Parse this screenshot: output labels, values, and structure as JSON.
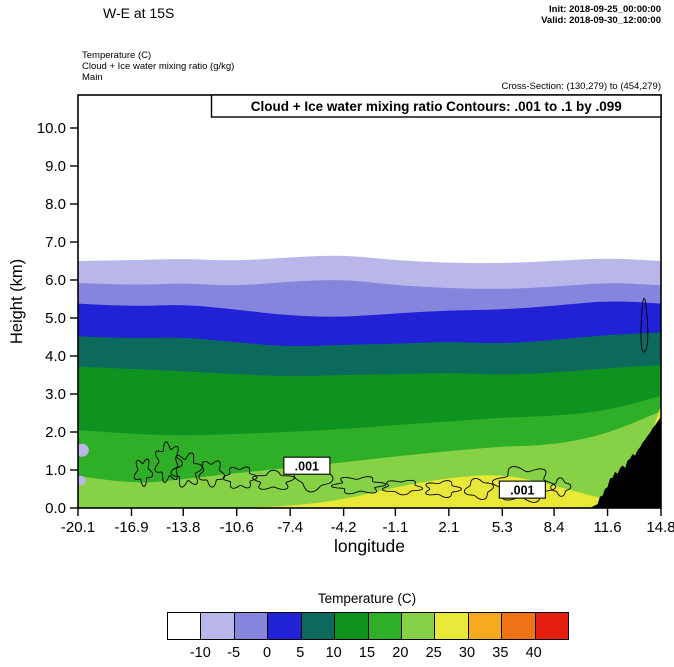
{
  "header": {
    "title": "W-E at 15S",
    "init": "Init: 2018-09-25_00:00:00",
    "valid": "Valid: 2018-09-30_12:00:00",
    "field_lines": [
      "Temperature  (C)",
      "Cloud + Ice water mixing ratio  (g/kg)",
      "Main"
    ],
    "cross_section": "Cross-Section: (130,279) to (454,279)"
  },
  "plot": {
    "contour_note": "Cloud + Ice water mixing ratio Contours: .001 to .1 by .099",
    "xlabel": "longitude",
    "ylabel": "Height (km)"
  },
  "colorbar": {
    "title": "Temperature  (C)",
    "tick_labels": [
      "-10",
      "-5",
      "0",
      "5",
      "10",
      "15",
      "20",
      "25",
      "30",
      "35",
      "40"
    ],
    "colors": [
      "#ffffff",
      "#b9b7ea",
      "#8585de",
      "#2121d6",
      "#0c6a5d",
      "#0f9320",
      "#2fae28",
      "#86d145",
      "#e8e838",
      "#f5a91e",
      "#ef7215",
      "#e51e0f"
    ]
  },
  "chart_data": {
    "type": "heatmap",
    "subtype": "filled-contour-vertical-cross-section",
    "title": "Cloud + Ice water mixing ratio Contours: .001 to .1 by .099",
    "xlabel": "longitude",
    "ylabel": "Height (km)",
    "xlim": [
      -20.1,
      14.8
    ],
    "ylim_km": [
      0,
      10.87
    ],
    "xticks": [
      -20.1,
      -16.9,
      -13.8,
      -10.6,
      -7.4,
      -4.2,
      -1.1,
      2.1,
      5.3,
      8.4,
      11.6,
      14.8
    ],
    "xtick_labels": [
      "-20.1",
      "-16.9",
      "-13.8",
      "-10.6",
      "-7.4",
      "-4.2",
      "-1.1",
      "2.1",
      "5.3",
      "8.4",
      "11.6",
      "14.8"
    ],
    "yticks": [
      0,
      1,
      2,
      3,
      4,
      5,
      6,
      7,
      8,
      9,
      10
    ],
    "ytick_labels": [
      "0.0",
      "1.0",
      "2.0",
      "3.0",
      "4.0",
      "5.0",
      "6.0",
      "7.0",
      "8.0",
      "9.0",
      "10.0"
    ],
    "x": [
      -20.1,
      -16.9,
      -13.8,
      -10.6,
      -7.4,
      -4.2,
      -1.1,
      2.1,
      5.3,
      8.4,
      11.6,
      14.8
    ],
    "temperature_bands": [
      {
        "level_above_c": -10,
        "color": "#b9b7ea",
        "top_height_km": [
          6.5,
          6.52,
          6.56,
          6.5,
          6.6,
          6.66,
          6.52,
          6.45,
          6.44,
          6.5,
          6.58,
          6.5
        ]
      },
      {
        "level_above_c": -5,
        "color": "#8585de",
        "top_height_km": [
          5.92,
          5.86,
          5.92,
          5.84,
          5.96,
          6.02,
          5.86,
          5.78,
          5.76,
          5.82,
          5.94,
          5.86
        ]
      },
      {
        "level_above_c": 0,
        "color": "#2121d6",
        "top_height_km": [
          5.38,
          5.3,
          5.36,
          5.22,
          5.06,
          5.02,
          5.12,
          5.2,
          5.22,
          5.32,
          5.46,
          5.38
        ]
      },
      {
        "level_above_c": 5,
        "color": "#0c6a5d",
        "top_height_km": [
          4.52,
          4.46,
          4.5,
          4.36,
          4.24,
          4.3,
          4.32,
          4.38,
          4.32,
          4.42,
          4.56,
          4.62
        ]
      },
      {
        "level_above_c": 10,
        "color": "#0f9320",
        "top_height_km": [
          3.72,
          3.66,
          3.6,
          3.52,
          3.46,
          3.5,
          3.52,
          3.56,
          3.5,
          3.56,
          3.68,
          3.76
        ]
      },
      {
        "level_above_c": 15,
        "color": "#2fae28",
        "top_height_km": [
          2.05,
          1.95,
          1.9,
          1.95,
          2.0,
          2.08,
          2.18,
          2.28,
          2.38,
          2.42,
          2.56,
          2.95
        ]
      },
      {
        "level_above_c": 20,
        "color": "#86d145",
        "top_height_km": [
          0.85,
          0.62,
          0.76,
          0.92,
          1.06,
          1.2,
          1.36,
          1.5,
          1.62,
          1.66,
          1.95,
          2.55
        ]
      },
      {
        "level_above_c": 25,
        "color": "#e8e838",
        "top_height_km": [
          0.0,
          0.0,
          0.0,
          0.0,
          0.05,
          0.22,
          0.55,
          0.8,
          0.9,
          0.6,
          0.2,
          0.0
        ]
      }
    ],
    "cold_pockets": [
      {
        "cx": -19.85,
        "cy": 1.52,
        "rx": 0.4,
        "ry": 0.17,
        "color": "#b9b7ea"
      },
      {
        "cx": -19.92,
        "cy": 0.72,
        "rx": 0.28,
        "ry": 0.13,
        "color": "#b9b7ea"
      }
    ],
    "warm_pocket_right": {
      "color": "#e8e838",
      "points": [
        [
          14.38,
          2.1
        ],
        [
          14.8,
          2.4
        ],
        [
          14.8,
          2.7
        ],
        [
          14.5,
          2.32
        ]
      ]
    },
    "terrain": {
      "color": "#000000",
      "profile_km": [
        [
          10.55,
          0
        ],
        [
          10.8,
          0.06
        ],
        [
          11.0,
          0.1
        ],
        [
          11.15,
          0.3
        ],
        [
          11.3,
          0.32
        ],
        [
          11.45,
          0.5
        ],
        [
          11.6,
          0.55
        ],
        [
          11.75,
          0.78
        ],
        [
          11.9,
          0.8
        ],
        [
          12.05,
          0.95
        ],
        [
          12.2,
          0.9
        ],
        [
          12.35,
          1.05
        ],
        [
          12.5,
          1.12
        ],
        [
          12.65,
          1.05
        ],
        [
          12.8,
          1.25
        ],
        [
          12.95,
          1.3
        ],
        [
          13.1,
          1.42
        ],
        [
          13.25,
          1.38
        ],
        [
          13.4,
          1.52
        ],
        [
          13.55,
          1.6
        ],
        [
          13.7,
          1.72
        ],
        [
          13.85,
          1.8
        ],
        [
          14.0,
          1.9
        ],
        [
          14.15,
          1.98
        ],
        [
          14.3,
          2.1
        ],
        [
          14.45,
          2.18
        ],
        [
          14.6,
          2.28
        ],
        [
          14.8,
          2.4
        ]
      ]
    },
    "cloud_contours": {
      "value_interval": ".001 to .1 by .099",
      "blobs": [
        {
          "cx": -16.2,
          "cy": 0.95,
          "rx": 0.45,
          "ry": 0.3,
          "waves": 5,
          "amp": 0.28,
          "phase": 0.5
        },
        {
          "cx": -14.7,
          "cy": 1.2,
          "rx": 0.7,
          "ry": 0.45,
          "waves": 7,
          "amp": 0.22,
          "phase": 1.2
        },
        {
          "cx": -13.6,
          "cy": 1.0,
          "rx": 0.75,
          "ry": 0.38,
          "waves": 6,
          "amp": 0.26,
          "phase": 2.6
        },
        {
          "cx": -12.1,
          "cy": 0.92,
          "rx": 0.65,
          "ry": 0.3,
          "waves": 5,
          "amp": 0.24,
          "phase": 0.2
        },
        {
          "cx": -10.4,
          "cy": 0.8,
          "rx": 0.85,
          "ry": 0.26,
          "waves": 6,
          "amp": 0.2,
          "phase": 1.8
        },
        {
          "cx": -8.4,
          "cy": 0.72,
          "rx": 1.05,
          "ry": 0.22,
          "waves": 5,
          "amp": 0.24,
          "phase": 3.1
        },
        {
          "cx": -6.0,
          "cy": 0.82,
          "rx": 1.0,
          "ry": 0.34,
          "waves": 4,
          "amp": 0.18,
          "phase": 0.9
        },
        {
          "cx": -3.3,
          "cy": 0.6,
          "rx": 1.35,
          "ry": 0.2,
          "waves": 6,
          "amp": 0.22,
          "phase": 2.2
        },
        {
          "cx": -0.7,
          "cy": 0.55,
          "rx": 1.05,
          "ry": 0.17,
          "waves": 5,
          "amp": 0.2,
          "phase": 0.4
        },
        {
          "cx": 1.7,
          "cy": 0.5,
          "rx": 0.95,
          "ry": 0.19,
          "waves": 5,
          "amp": 0.22,
          "phase": 1.5
        },
        {
          "cx": 3.9,
          "cy": 0.5,
          "rx": 0.75,
          "ry": 0.24,
          "waves": 4,
          "amp": 0.2,
          "phase": 2.8
        },
        {
          "cx": 6.6,
          "cy": 0.62,
          "rx": 1.6,
          "ry": 0.42,
          "waves": 6,
          "amp": 0.2,
          "phase": 0.7
        },
        {
          "cx": 8.8,
          "cy": 0.55,
          "rx": 0.5,
          "ry": 0.2,
          "waves": 4,
          "amp": 0.22,
          "phase": 1.9
        },
        {
          "cx": 13.8,
          "cy": 4.75,
          "rx": 0.2,
          "ry": 0.7,
          "waves": 3,
          "amp": 0.1,
          "phase": 0.3
        }
      ],
      "labels": [
        {
          "text": ".001",
          "lon": -6.4,
          "km": 1.1
        },
        {
          "text": ".001",
          "lon": 6.5,
          "km": 0.47
        }
      ]
    }
  }
}
